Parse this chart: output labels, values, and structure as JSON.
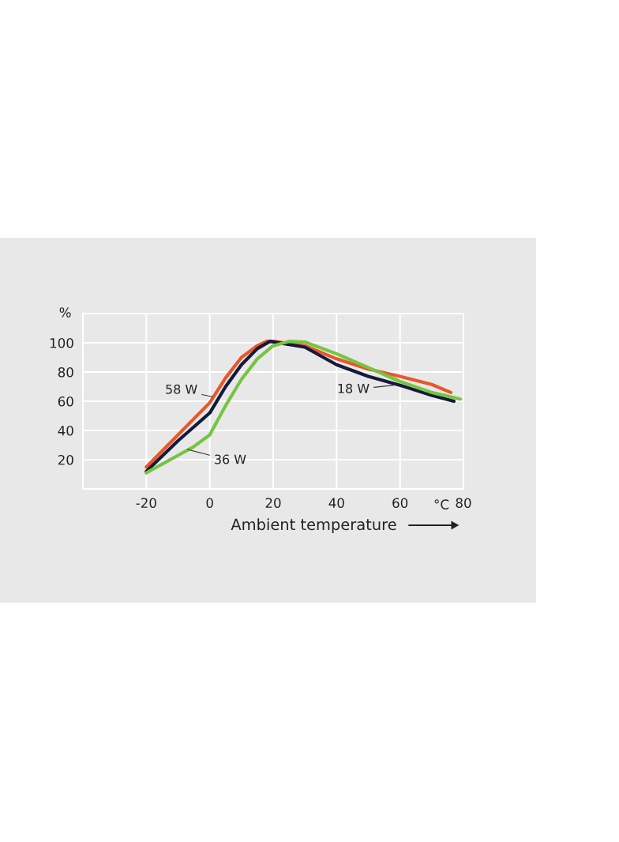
{
  "chart_data": {
    "type": "line",
    "xlabel": "Ambient temperature",
    "ylabel": "%",
    "xlim": [
      -40,
      80
    ],
    "xticks": [
      -20,
      0,
      20,
      40,
      60,
      80
    ],
    "ylim": [
      0,
      120
    ],
    "yticks": [
      20,
      40,
      60,
      80,
      100
    ],
    "grid": true,
    "legend": false,
    "line_style": "solid",
    "marker": "none",
    "annotations": [
      "°C"
    ],
    "series": [
      {
        "name": "58 W",
        "color": "#e8572a",
        "x": [
          -20,
          -10,
          0,
          5,
          10,
          15,
          18,
          20,
          30,
          40,
          50,
          60,
          70,
          76
        ],
        "values": [
          15,
          37,
          59,
          76,
          90,
          98,
          101,
          101,
          98,
          89,
          82,
          77,
          71.5,
          66
        ]
      },
      {
        "name": "18 W",
        "color": "#141a3c",
        "x": [
          -20,
          -10,
          0,
          5,
          10,
          15,
          19,
          30,
          40,
          50,
          60,
          70,
          77
        ],
        "values": [
          12,
          33,
          52,
          70,
          85,
          96,
          101,
          97,
          85,
          77,
          71,
          64,
          60
        ]
      },
      {
        "name": "36 W",
        "color": "#76c442",
        "x": [
          -20,
          -10,
          -5,
          0,
          5,
          10,
          15,
          20,
          25,
          30,
          40,
          50,
          60,
          70,
          79
        ],
        "values": [
          11,
          23,
          29,
          37,
          57,
          75,
          89,
          98,
          101,
          100.5,
          92.5,
          83,
          73.5,
          66,
          61.5
        ]
      }
    ]
  }
}
